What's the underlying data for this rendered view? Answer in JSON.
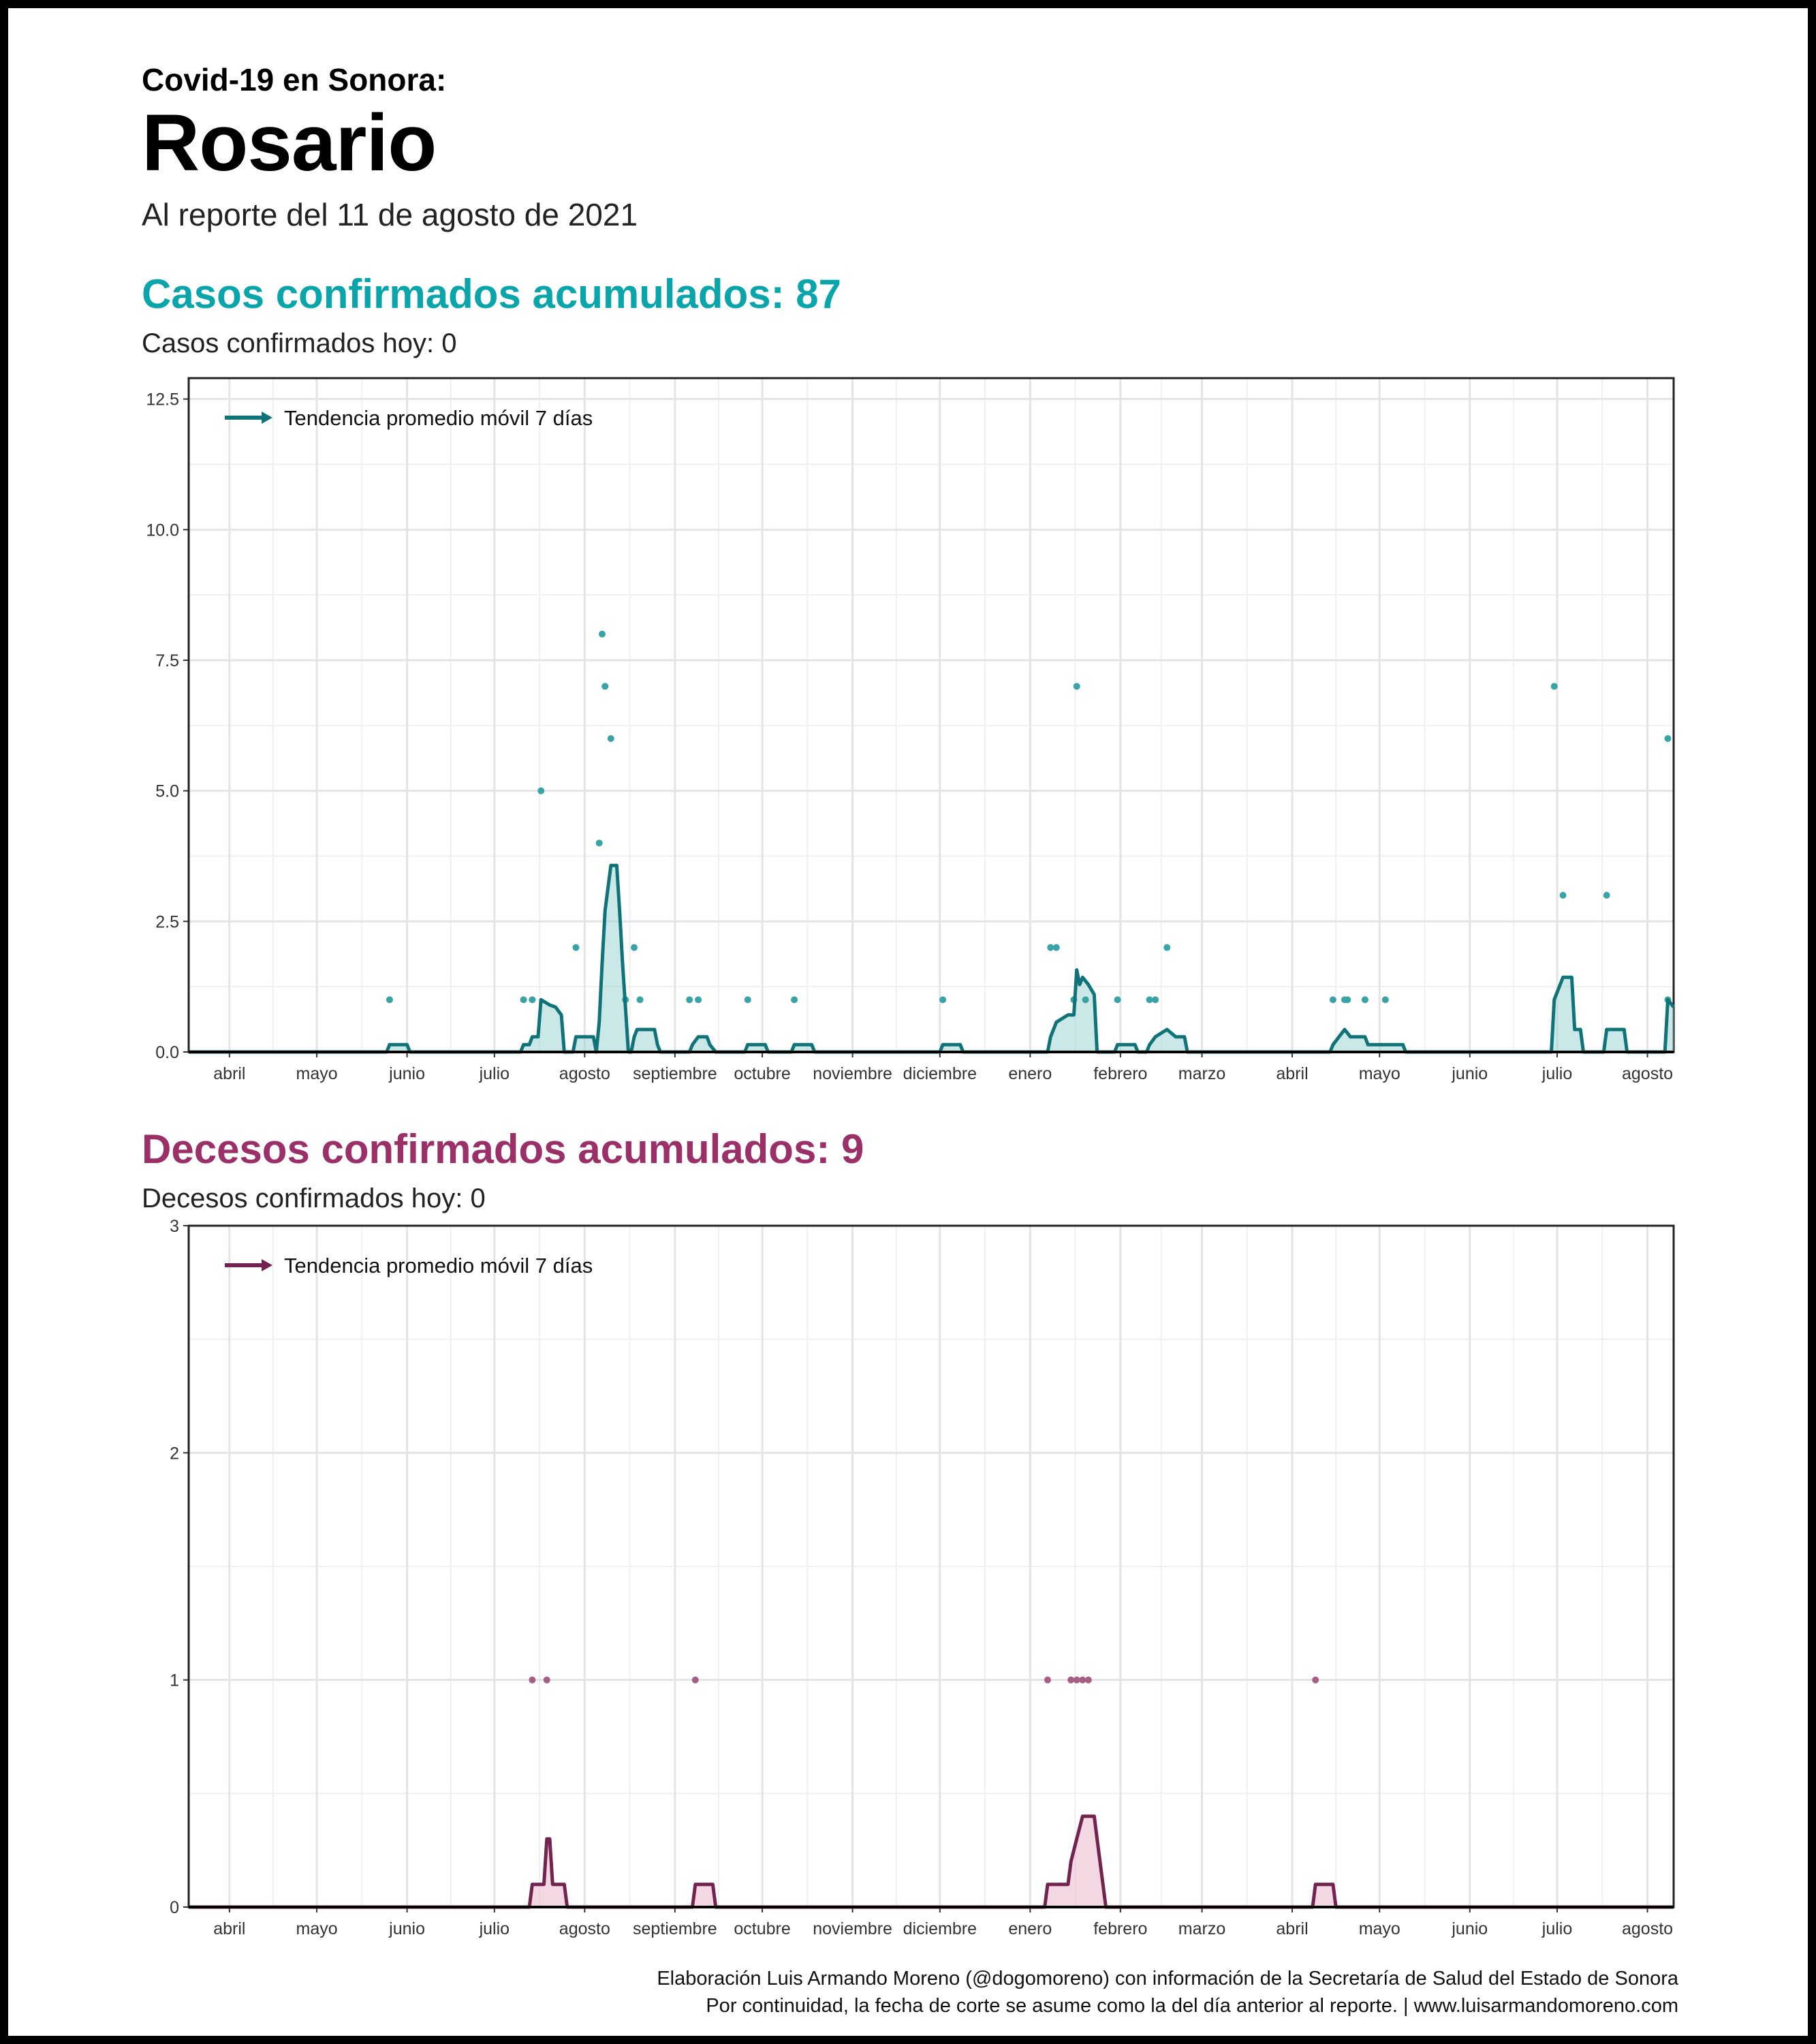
{
  "header": {
    "supertitle": "Covid-19 en Sonora:",
    "title": "Rosario",
    "subtitle": "Al reporte del 11 de agosto de 2021"
  },
  "cases": {
    "title": "Casos confirmados acumulados: 87",
    "subtitle": "Casos confirmados hoy: 0"
  },
  "deaths": {
    "title": "Decesos confirmados acumulados: 9",
    "subtitle": "Decesos confirmados hoy: 0"
  },
  "caption": {
    "line1": "Elaboración Luis Armando Moreno (@dogomoreno) con información de la Secretaría de Salud del Estado de Sonora",
    "line2": "Por continuidad, la fecha de corte se asume como la del día anterior al reporte. | www.luisarmandomoreno.com"
  },
  "colors": {
    "cases_line": "#0f7377",
    "cases_fill": "#9fd6d6",
    "cases_point": "#3aa3a8",
    "deaths_line": "#72234f",
    "deaths_fill": "#e9b7cc",
    "deaths_point": "#a45f82",
    "cases_title": "#0aa5aa",
    "deaths_title": "#9b2f68"
  },
  "chart_data": [
    {
      "type": "line",
      "legend_label": "Tendencia promedio móvil 7 días",
      "legend_position": "top-left",
      "grid": true,
      "x_range": [
        "2020-03-18",
        "2021-08-10"
      ],
      "x_ticks": [
        {
          "date": "2020-04-01",
          "label": "abril"
        },
        {
          "date": "2020-05-01",
          "label": "mayo"
        },
        {
          "date": "2020-06-01",
          "label": "junio"
        },
        {
          "date": "2020-07-01",
          "label": "julio"
        },
        {
          "date": "2020-08-01",
          "label": "agosto"
        },
        {
          "date": "2020-09-01",
          "label": "septiembre"
        },
        {
          "date": "2020-10-01",
          "label": "octubre"
        },
        {
          "date": "2020-11-01",
          "label": "noviembre"
        },
        {
          "date": "2020-12-01",
          "label": "diciembre"
        },
        {
          "date": "2021-01-01",
          "label": "enero"
        },
        {
          "date": "2021-02-01",
          "label": "febrero"
        },
        {
          "date": "2021-03-01",
          "label": "marzo"
        },
        {
          "date": "2021-04-01",
          "label": "abril"
        },
        {
          "date": "2021-05-01",
          "label": "mayo"
        },
        {
          "date": "2021-06-01",
          "label": "junio"
        },
        {
          "date": "2021-07-01",
          "label": "julio"
        },
        {
          "date": "2021-08-01",
          "label": "agosto"
        }
      ],
      "y_range": [
        0,
        12.9
      ],
      "y_ticks": [
        {
          "value": 0,
          "label": "0.0"
        },
        {
          "value": 2.5,
          "label": "2.5"
        },
        {
          "value": 5,
          "label": "5.0"
        },
        {
          "value": 7.5,
          "label": "7.5"
        },
        {
          "value": 10,
          "label": "10.0"
        },
        {
          "value": 12.5,
          "label": "12.5"
        }
      ],
      "daily_points": [
        {
          "date": "2020-05-26",
          "value": 1
        },
        {
          "date": "2020-07-11",
          "value": 1
        },
        {
          "date": "2020-07-14",
          "value": 1
        },
        {
          "date": "2020-07-17",
          "value": 5
        },
        {
          "date": "2020-07-29",
          "value": 2
        },
        {
          "date": "2020-08-06",
          "value": 4
        },
        {
          "date": "2020-08-07",
          "value": 8
        },
        {
          "date": "2020-08-08",
          "value": 7
        },
        {
          "date": "2020-08-10",
          "value": 6
        },
        {
          "date": "2020-08-15",
          "value": 1
        },
        {
          "date": "2020-08-18",
          "value": 2
        },
        {
          "date": "2020-08-20",
          "value": 1
        },
        {
          "date": "2020-09-06",
          "value": 1
        },
        {
          "date": "2020-09-09",
          "value": 1
        },
        {
          "date": "2020-09-26",
          "value": 1
        },
        {
          "date": "2020-10-12",
          "value": 1
        },
        {
          "date": "2020-12-02",
          "value": 1
        },
        {
          "date": "2021-01-08",
          "value": 2
        },
        {
          "date": "2021-01-10",
          "value": 2
        },
        {
          "date": "2021-01-16",
          "value": 1
        },
        {
          "date": "2021-01-17",
          "value": 7
        },
        {
          "date": "2021-01-20",
          "value": 1
        },
        {
          "date": "2021-01-31",
          "value": 1
        },
        {
          "date": "2021-02-11",
          "value": 1
        },
        {
          "date": "2021-02-13",
          "value": 1
        },
        {
          "date": "2021-02-17",
          "value": 2
        },
        {
          "date": "2021-04-15",
          "value": 1
        },
        {
          "date": "2021-04-19",
          "value": 1
        },
        {
          "date": "2021-04-20",
          "value": 1
        },
        {
          "date": "2021-04-26",
          "value": 1
        },
        {
          "date": "2021-05-03",
          "value": 1
        },
        {
          "date": "2021-06-30",
          "value": 7
        },
        {
          "date": "2021-07-03",
          "value": 3
        },
        {
          "date": "2021-07-18",
          "value": 3
        },
        {
          "date": "2021-08-08",
          "value": 6
        },
        {
          "date": "2021-08-08",
          "value": 1
        }
      ],
      "trend": [
        {
          "date": "2020-03-18",
          "value": 0
        },
        {
          "date": "2020-05-25",
          "value": 0
        },
        {
          "date": "2020-05-26",
          "value": 0.14
        },
        {
          "date": "2020-06-01",
          "value": 0.14
        },
        {
          "date": "2020-06-02",
          "value": 0
        },
        {
          "date": "2020-07-10",
          "value": 0
        },
        {
          "date": "2020-07-11",
          "value": 0.14
        },
        {
          "date": "2020-07-13",
          "value": 0.14
        },
        {
          "date": "2020-07-14",
          "value": 0.29
        },
        {
          "date": "2020-07-16",
          "value": 0.29
        },
        {
          "date": "2020-07-17",
          "value": 1.0
        },
        {
          "date": "2020-07-20",
          "value": 0.9
        },
        {
          "date": "2020-07-22",
          "value": 0.86
        },
        {
          "date": "2020-07-24",
          "value": 0.71
        },
        {
          "date": "2020-07-25",
          "value": 0
        },
        {
          "date": "2020-07-28",
          "value": 0
        },
        {
          "date": "2020-07-29",
          "value": 0.29
        },
        {
          "date": "2020-08-04",
          "value": 0.29
        },
        {
          "date": "2020-08-05",
          "value": 0
        },
        {
          "date": "2020-08-06",
          "value": 0.57
        },
        {
          "date": "2020-08-07",
          "value": 1.71
        },
        {
          "date": "2020-08-08",
          "value": 2.71
        },
        {
          "date": "2020-08-10",
          "value": 3.57
        },
        {
          "date": "2020-08-12",
          "value": 3.57
        },
        {
          "date": "2020-08-13",
          "value": 2.71
        },
        {
          "date": "2020-08-14",
          "value": 1.71
        },
        {
          "date": "2020-08-15",
          "value": 0.86
        },
        {
          "date": "2020-08-16",
          "value": 0
        },
        {
          "date": "2020-08-17",
          "value": 0
        },
        {
          "date": "2020-08-18",
          "value": 0.29
        },
        {
          "date": "2020-08-19",
          "value": 0.43
        },
        {
          "date": "2020-08-25",
          "value": 0.43
        },
        {
          "date": "2020-08-26",
          "value": 0.14
        },
        {
          "date": "2020-08-27",
          "value": 0
        },
        {
          "date": "2020-09-06",
          "value": 0
        },
        {
          "date": "2020-09-07",
          "value": 0.14
        },
        {
          "date": "2020-09-09",
          "value": 0.29
        },
        {
          "date": "2020-09-12",
          "value": 0.29
        },
        {
          "date": "2020-09-13",
          "value": 0.14
        },
        {
          "date": "2020-09-15",
          "value": 0
        },
        {
          "date": "2020-09-25",
          "value": 0
        },
        {
          "date": "2020-09-26",
          "value": 0.14
        },
        {
          "date": "2020-10-02",
          "value": 0.14
        },
        {
          "date": "2020-10-03",
          "value": 0
        },
        {
          "date": "2020-10-11",
          "value": 0
        },
        {
          "date": "2020-10-12",
          "value": 0.14
        },
        {
          "date": "2020-10-18",
          "value": 0.14
        },
        {
          "date": "2020-10-19",
          "value": 0
        },
        {
          "date": "2020-12-01",
          "value": 0
        },
        {
          "date": "2020-12-02",
          "value": 0.14
        },
        {
          "date": "2020-12-08",
          "value": 0.14
        },
        {
          "date": "2020-12-09",
          "value": 0
        },
        {
          "date": "2021-01-07",
          "value": 0
        },
        {
          "date": "2021-01-08",
          "value": 0.29
        },
        {
          "date": "2021-01-10",
          "value": 0.57
        },
        {
          "date": "2021-01-14",
          "value": 0.71
        },
        {
          "date": "2021-01-16",
          "value": 0.71
        },
        {
          "date": "2021-01-17",
          "value": 1.57
        },
        {
          "date": "2021-01-18",
          "value": 1.29
        },
        {
          "date": "2021-01-19",
          "value": 1.43
        },
        {
          "date": "2021-01-21",
          "value": 1.29
        },
        {
          "date": "2021-01-23",
          "value": 1.1
        },
        {
          "date": "2021-01-24",
          "value": 0
        },
        {
          "date": "2021-01-30",
          "value": 0
        },
        {
          "date": "2021-01-31",
          "value": 0.14
        },
        {
          "date": "2021-02-06",
          "value": 0.14
        },
        {
          "date": "2021-02-07",
          "value": 0
        },
        {
          "date": "2021-02-10",
          "value": 0
        },
        {
          "date": "2021-02-11",
          "value": 0.14
        },
        {
          "date": "2021-02-13",
          "value": 0.29
        },
        {
          "date": "2021-02-17",
          "value": 0.43
        },
        {
          "date": "2021-02-20",
          "value": 0.29
        },
        {
          "date": "2021-02-23",
          "value": 0.29
        },
        {
          "date": "2021-02-24",
          "value": 0
        },
        {
          "date": "2021-04-14",
          "value": 0
        },
        {
          "date": "2021-04-15",
          "value": 0.14
        },
        {
          "date": "2021-04-19",
          "value": 0.43
        },
        {
          "date": "2021-04-21",
          "value": 0.29
        },
        {
          "date": "2021-04-26",
          "value": 0.29
        },
        {
          "date": "2021-04-27",
          "value": 0.14
        },
        {
          "date": "2021-05-09",
          "value": 0.14
        },
        {
          "date": "2021-05-10",
          "value": 0
        },
        {
          "date": "2021-06-29",
          "value": 0
        },
        {
          "date": "2021-06-30",
          "value": 1.0
        },
        {
          "date": "2021-07-03",
          "value": 1.43
        },
        {
          "date": "2021-07-06",
          "value": 1.43
        },
        {
          "date": "2021-07-07",
          "value": 0.43
        },
        {
          "date": "2021-07-09",
          "value": 0.43
        },
        {
          "date": "2021-07-10",
          "value": 0
        },
        {
          "date": "2021-07-17",
          "value": 0
        },
        {
          "date": "2021-07-18",
          "value": 0.43
        },
        {
          "date": "2021-07-24",
          "value": 0.43
        },
        {
          "date": "2021-07-25",
          "value": 0
        },
        {
          "date": "2021-08-07",
          "value": 0
        },
        {
          "date": "2021-08-08",
          "value": 1.0
        },
        {
          "date": "2021-08-10",
          "value": 0.86
        }
      ]
    },
    {
      "type": "line",
      "legend_label": "Tendencia promedio móvil 7 días",
      "legend_position": "top-left",
      "grid": true,
      "x_range": [
        "2020-03-18",
        "2021-08-10"
      ],
      "x_ticks": [
        {
          "date": "2020-04-01",
          "label": "abril"
        },
        {
          "date": "2020-05-01",
          "label": "mayo"
        },
        {
          "date": "2020-06-01",
          "label": "junio"
        },
        {
          "date": "2020-07-01",
          "label": "julio"
        },
        {
          "date": "2020-08-01",
          "label": "agosto"
        },
        {
          "date": "2020-09-01",
          "label": "septiembre"
        },
        {
          "date": "2020-10-01",
          "label": "octubre"
        },
        {
          "date": "2020-11-01",
          "label": "noviembre"
        },
        {
          "date": "2020-12-01",
          "label": "diciembre"
        },
        {
          "date": "2021-01-01",
          "label": "enero"
        },
        {
          "date": "2021-02-01",
          "label": "febrero"
        },
        {
          "date": "2021-03-01",
          "label": "marzo"
        },
        {
          "date": "2021-04-01",
          "label": "abril"
        },
        {
          "date": "2021-05-01",
          "label": "mayo"
        },
        {
          "date": "2021-06-01",
          "label": "junio"
        },
        {
          "date": "2021-07-01",
          "label": "julio"
        },
        {
          "date": "2021-08-01",
          "label": "agosto"
        }
      ],
      "y_range": [
        0,
        3
      ],
      "y_ticks": [
        {
          "value": 0,
          "label": "0"
        },
        {
          "value": 1,
          "label": "1"
        },
        {
          "value": 2,
          "label": "2"
        },
        {
          "value": 3,
          "label": "3"
        }
      ],
      "daily_points": [
        {
          "date": "2020-07-14",
          "value": 1
        },
        {
          "date": "2020-07-19",
          "value": 1
        },
        {
          "date": "2020-09-08",
          "value": 1
        },
        {
          "date": "2021-01-07",
          "value": 1
        },
        {
          "date": "2021-01-15",
          "value": 1
        },
        {
          "date": "2021-01-17",
          "value": 1
        },
        {
          "date": "2021-01-19",
          "value": 1
        },
        {
          "date": "2021-01-21",
          "value": 1
        },
        {
          "date": "2021-04-09",
          "value": 1
        }
      ],
      "trend": [
        {
          "date": "2020-03-18",
          "value": 0
        },
        {
          "date": "2020-07-13",
          "value": 0
        },
        {
          "date": "2020-07-14",
          "value": 0.1
        },
        {
          "date": "2020-07-18",
          "value": 0.1
        },
        {
          "date": "2020-07-19",
          "value": 0.3
        },
        {
          "date": "2020-07-20",
          "value": 0.3
        },
        {
          "date": "2020-07-21",
          "value": 0.1
        },
        {
          "date": "2020-07-25",
          "value": 0.1
        },
        {
          "date": "2020-07-26",
          "value": 0
        },
        {
          "date": "2020-09-07",
          "value": 0
        },
        {
          "date": "2020-09-08",
          "value": 0.1
        },
        {
          "date": "2020-09-14",
          "value": 0.1
        },
        {
          "date": "2020-09-15",
          "value": 0
        },
        {
          "date": "2021-01-06",
          "value": 0
        },
        {
          "date": "2021-01-07",
          "value": 0.1
        },
        {
          "date": "2021-01-14",
          "value": 0.1
        },
        {
          "date": "2021-01-15",
          "value": 0.2
        },
        {
          "date": "2021-01-17",
          "value": 0.3
        },
        {
          "date": "2021-01-19",
          "value": 0.4
        },
        {
          "date": "2021-01-23",
          "value": 0.4
        },
        {
          "date": "2021-01-24",
          "value": 0.3
        },
        {
          "date": "2021-01-26",
          "value": 0.1
        },
        {
          "date": "2021-01-27",
          "value": 0
        },
        {
          "date": "2021-04-08",
          "value": 0
        },
        {
          "date": "2021-04-09",
          "value": 0.1
        },
        {
          "date": "2021-04-15",
          "value": 0.1
        },
        {
          "date": "2021-04-16",
          "value": 0
        },
        {
          "date": "2021-08-10",
          "value": 0
        }
      ]
    }
  ]
}
